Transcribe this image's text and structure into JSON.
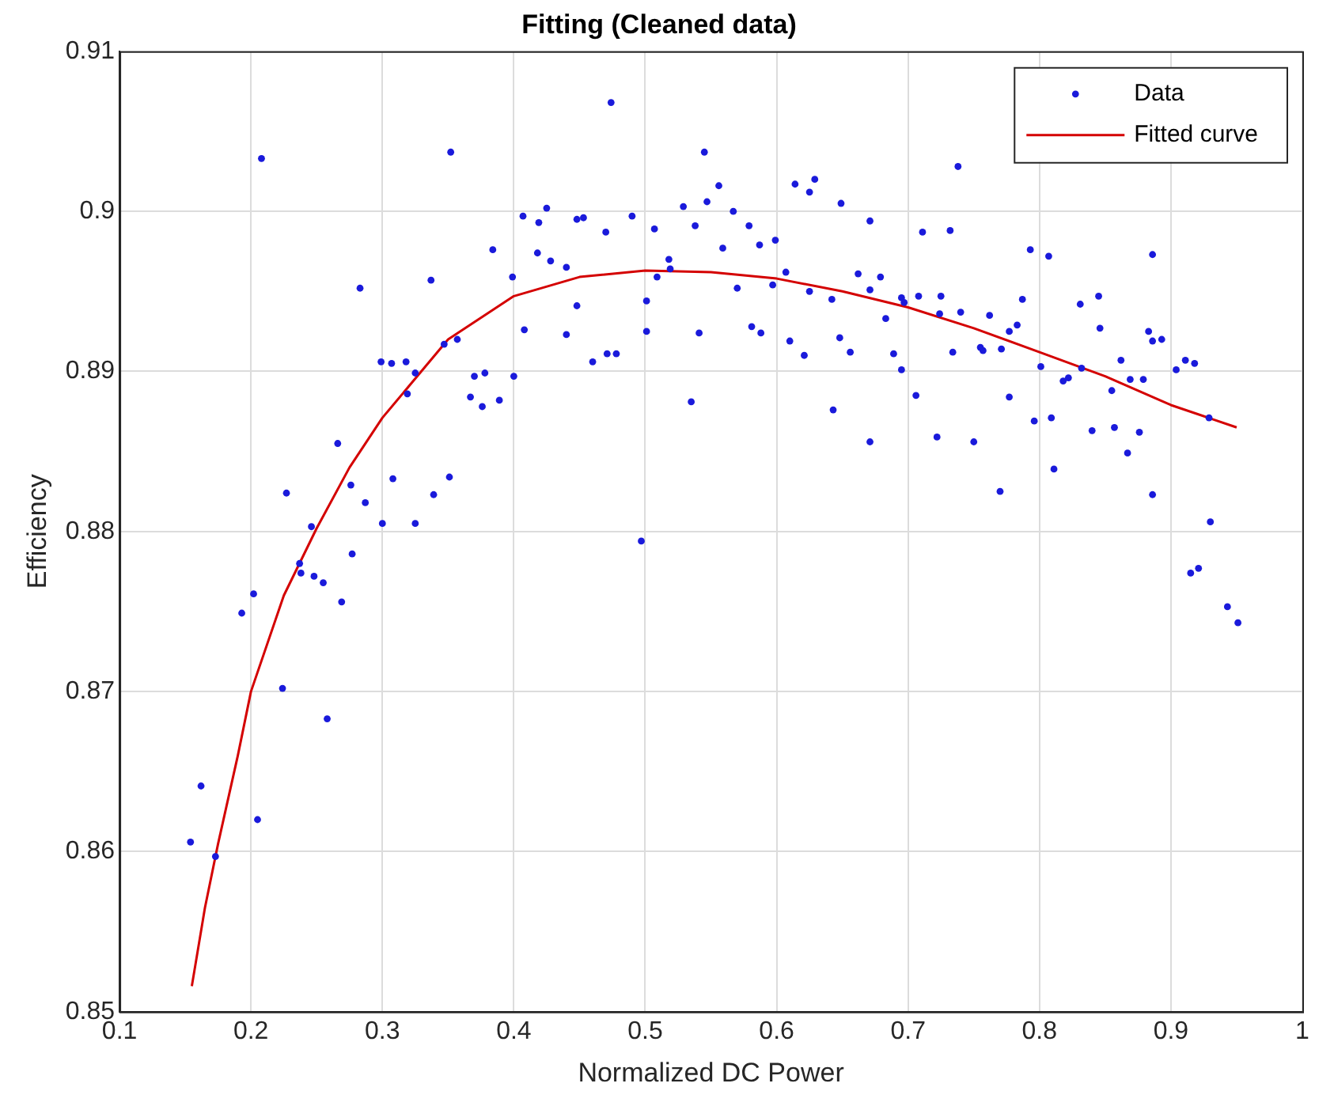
{
  "chart_data": {
    "type": "scatter",
    "title": "Fitting (Cleaned data)",
    "xlabel": "Normalized DC Power",
    "ylabel": "Efficiency",
    "xlim": [
      0.1,
      1
    ],
    "xticks": [
      0.1,
      0.2,
      0.3,
      0.4,
      0.5,
      0.6,
      0.7,
      0.8,
      0.9,
      1
    ],
    "ylim": [
      0.85,
      0.91
    ],
    "yticks": [
      0.85,
      0.86,
      0.87,
      0.88,
      0.89,
      0.9,
      0.91
    ],
    "grid": true,
    "legend": "top right",
    "series": [
      {
        "name": "Data",
        "marker": "circle",
        "color": "#1a1adb",
        "x": [
          0.208,
          0.283,
          0.266,
          0.227,
          0.276,
          0.287,
          0.3,
          0.237,
          0.238,
          0.248,
          0.255,
          0.246,
          0.277,
          0.269,
          0.202,
          0.193,
          0.224,
          0.258,
          0.162,
          0.154,
          0.205,
          0.173,
          0.299,
          0.307,
          0.318,
          0.319,
          0.325,
          0.308,
          0.325,
          0.339,
          0.351,
          0.337,
          0.352,
          0.347,
          0.357,
          0.37,
          0.378,
          0.367,
          0.376,
          0.389,
          0.384,
          0.399,
          0.4,
          0.408,
          0.407,
          0.418,
          0.419,
          0.425,
          0.428,
          0.44,
          0.44,
          0.448,
          0.453,
          0.448,
          0.46,
          0.47,
          0.471,
          0.478,
          0.474,
          0.49,
          0.497,
          0.501,
          0.501,
          0.507,
          0.509,
          0.518,
          0.519,
          0.529,
          0.538,
          0.541,
          0.535,
          0.545,
          0.547,
          0.556,
          0.559,
          0.567,
          0.57,
          0.579,
          0.581,
          0.588,
          0.587,
          0.599,
          0.597,
          0.607,
          0.61,
          0.614,
          0.621,
          0.625,
          0.625,
          0.629,
          0.642,
          0.643,
          0.648,
          0.649,
          0.656,
          0.662,
          0.671,
          0.671,
          0.671,
          0.679,
          0.683,
          0.689,
          0.695,
          0.695,
          0.697,
          0.706,
          0.708,
          0.711,
          0.722,
          0.724,
          0.725,
          0.732,
          0.734,
          0.738,
          0.74,
          0.75,
          0.755,
          0.757,
          0.762,
          0.77,
          0.771,
          0.777,
          0.777,
          0.783,
          0.787,
          0.793,
          0.796,
          0.801,
          0.807,
          0.809,
          0.811,
          0.818,
          0.822,
          0.831,
          0.832,
          0.84,
          0.845,
          0.846,
          0.855,
          0.857,
          0.862,
          0.867,
          0.869,
          0.876,
          0.879,
          0.883,
          0.886,
          0.886,
          0.886,
          0.893,
          0.904,
          0.911,
          0.918,
          0.915,
          0.921,
          0.93,
          0.929,
          0.943,
          0.951
        ],
        "values": [
          0.9033,
          0.8952,
          0.8855,
          0.8824,
          0.8829,
          0.8818,
          0.8805,
          0.878,
          0.8774,
          0.8772,
          0.8768,
          0.8803,
          0.8786,
          0.8756,
          0.8761,
          0.8749,
          0.8702,
          0.8683,
          0.8641,
          0.8606,
          0.862,
          0.8597,
          0.8906,
          0.8905,
          0.8906,
          0.8886,
          0.8899,
          0.8833,
          0.8805,
          0.8823,
          0.8834,
          0.8957,
          0.9037,
          0.8917,
          0.892,
          0.8897,
          0.8899,
          0.8884,
          0.8878,
          0.8882,
          0.8976,
          0.8959,
          0.8897,
          0.8926,
          0.8997,
          0.8974,
          0.8993,
          0.9002,
          0.8969,
          0.8965,
          0.8923,
          0.8995,
          0.8996,
          0.8941,
          0.8906,
          0.8987,
          0.8911,
          0.8911,
          0.9068,
          0.8997,
          0.8794,
          0.8944,
          0.8925,
          0.8989,
          0.8959,
          0.897,
          0.8964,
          0.9003,
          0.8991,
          0.8924,
          0.8881,
          0.9037,
          0.9006,
          0.9016,
          0.8977,
          0.9,
          0.8952,
          0.8991,
          0.8928,
          0.8924,
          0.8979,
          0.8982,
          0.8954,
          0.8962,
          0.8919,
          0.9017,
          0.891,
          0.895,
          0.9012,
          0.902,
          0.8945,
          0.8876,
          0.8921,
          0.9005,
          0.8912,
          0.8961,
          0.8994,
          0.8951,
          0.8856,
          0.8959,
          0.8933,
          0.8911,
          0.8901,
          0.8946,
          0.8943,
          0.8885,
          0.8947,
          0.8987,
          0.8859,
          0.8936,
          0.8947,
          0.8988,
          0.8912,
          0.9028,
          0.8937,
          0.8856,
          0.8915,
          0.8913,
          0.8935,
          0.8825,
          0.8914,
          0.8884,
          0.8925,
          0.8929,
          0.8945,
          0.8976,
          0.8869,
          0.8903,
          0.8972,
          0.8871,
          0.8839,
          0.8894,
          0.8896,
          0.8942,
          0.8902,
          0.8863,
          0.8947,
          0.8927,
          0.8888,
          0.8865,
          0.8907,
          0.8849,
          0.8895,
          0.8862,
          0.8895,
          0.8925,
          0.8973,
          0.8919,
          0.8823,
          0.892,
          0.8901,
          0.8907,
          0.8905,
          0.8774,
          0.8777,
          0.8806,
          0.8871,
          0.8753,
          0.8743
        ]
      },
      {
        "name": "Fitted curve",
        "type": "line",
        "marker": "none",
        "color": "#d40000",
        "x": [
          0.155,
          0.165,
          0.175,
          0.19,
          0.2,
          0.225,
          0.25,
          0.275,
          0.3,
          0.35,
          0.4,
          0.45,
          0.5,
          0.55,
          0.6,
          0.65,
          0.7,
          0.75,
          0.8,
          0.85,
          0.9,
          0.95
        ],
        "values": [
          0.8516,
          0.8565,
          0.8605,
          0.866,
          0.87,
          0.876,
          0.8802,
          0.884,
          0.8871,
          0.892,
          0.8947,
          0.8959,
          0.8963,
          0.8962,
          0.8958,
          0.895,
          0.894,
          0.8927,
          0.8912,
          0.8897,
          0.8879,
          0.8865
        ]
      }
    ]
  }
}
